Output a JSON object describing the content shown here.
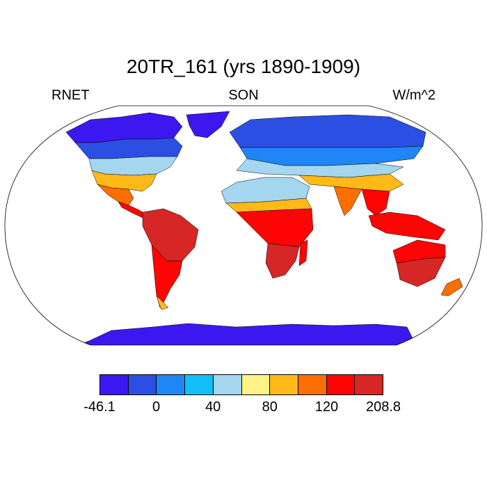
{
  "title": "20TR_161 (yrs 1890-1909)",
  "left_label": "RNET",
  "center_label": "SON",
  "right_label": "W/m^2",
  "colorbar": {
    "colors": [
      "#3c17f0",
      "#2c4fe3",
      "#1f86f5",
      "#14bff7",
      "#a4d6f0",
      "#fff387",
      "#ffb919",
      "#ff6e00",
      "#ff0404",
      "#d62626"
    ],
    "tick_labels": [
      "-46.1",
      "0",
      "40",
      "80",
      "120",
      "208.8"
    ]
  },
  "map": {
    "projection": "robinson",
    "land_palette": {
      "polar": "#3c17f0",
      "subpolar": "#2c4fe3",
      "cold": "#1f86f5",
      "cool": "#14bff7",
      "mild": "#a4d6f0",
      "warm": "#fff387",
      "warmer": "#ffb919",
      "hot": "#ff6e00",
      "hotter": "#ff0404",
      "hottest": "#d62626"
    }
  }
}
